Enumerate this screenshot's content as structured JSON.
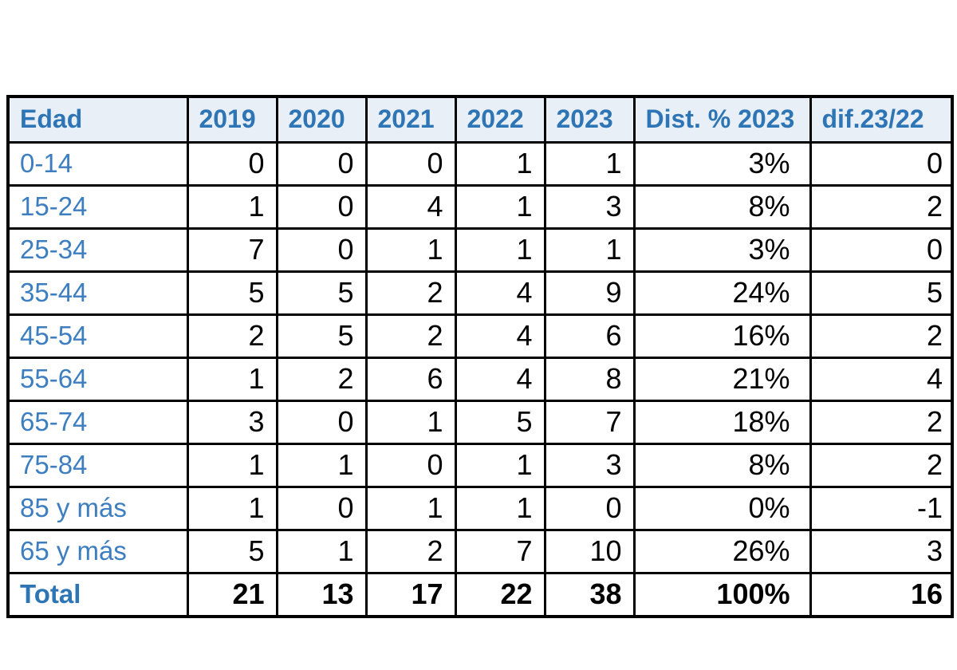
{
  "colors": {
    "header_background": "#e9eff7",
    "header_text": "#2e75b6",
    "row_label_text": "#3c7ec0",
    "data_text": "#000000",
    "border": "#000000"
  },
  "chart_data": {
    "type": "table",
    "title": "",
    "columns": [
      "Edad",
      "2019",
      "2020",
      "2021",
      "2022",
      "2023",
      "Dist. % 2023",
      "dif.23/22"
    ],
    "rows": [
      {
        "label": "0-14",
        "values": [
          "0",
          "0",
          "0",
          "1",
          "1",
          "3%",
          "0"
        ]
      },
      {
        "label": "15-24",
        "values": [
          "1",
          "0",
          "4",
          "1",
          "3",
          "8%",
          "2"
        ]
      },
      {
        "label": "25-34",
        "values": [
          "7",
          "0",
          "1",
          "1",
          "1",
          "3%",
          "0"
        ]
      },
      {
        "label": "35-44",
        "values": [
          "5",
          "5",
          "2",
          "4",
          "9",
          "24%",
          "5"
        ]
      },
      {
        "label": "45-54",
        "values": [
          "2",
          "5",
          "2",
          "4",
          "6",
          "16%",
          "2"
        ]
      },
      {
        "label": "55-64",
        "values": [
          "1",
          "2",
          "6",
          "4",
          "8",
          "21%",
          "4"
        ]
      },
      {
        "label": "65-74",
        "values": [
          "3",
          "0",
          "1",
          "5",
          "7",
          "18%",
          "2"
        ]
      },
      {
        "label": "75-84",
        "values": [
          "1",
          "1",
          "0",
          "1",
          "3",
          "8%",
          "2"
        ]
      },
      {
        "label": "85 y más",
        "values": [
          "1",
          "0",
          "1",
          "1",
          "0",
          "0%",
          "-1"
        ]
      },
      {
        "label": "65 y más",
        "values": [
          "5",
          "1",
          "2",
          "7",
          "10",
          "26%",
          "3"
        ]
      },
      {
        "label": "Total",
        "values": [
          "21",
          "13",
          "17",
          "22",
          "38",
          "100%",
          "16"
        ]
      }
    ]
  }
}
